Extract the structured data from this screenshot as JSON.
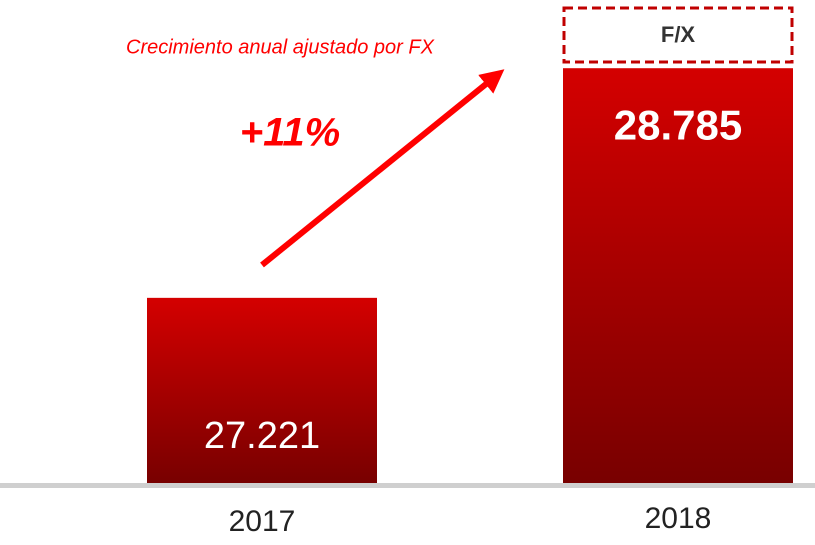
{
  "chart_data": {
    "type": "bar",
    "categories": [
      "2017",
      "2018"
    ],
    "values": [
      27221,
      28785
    ],
    "value_labels": [
      "27.221",
      "28.785"
    ],
    "color": "#c00000",
    "ylim": [
      25960,
      28800
    ],
    "annotations": [
      "Crecimiento anual ajustado por FX",
      "+11%",
      "F/X"
    ]
  }
}
